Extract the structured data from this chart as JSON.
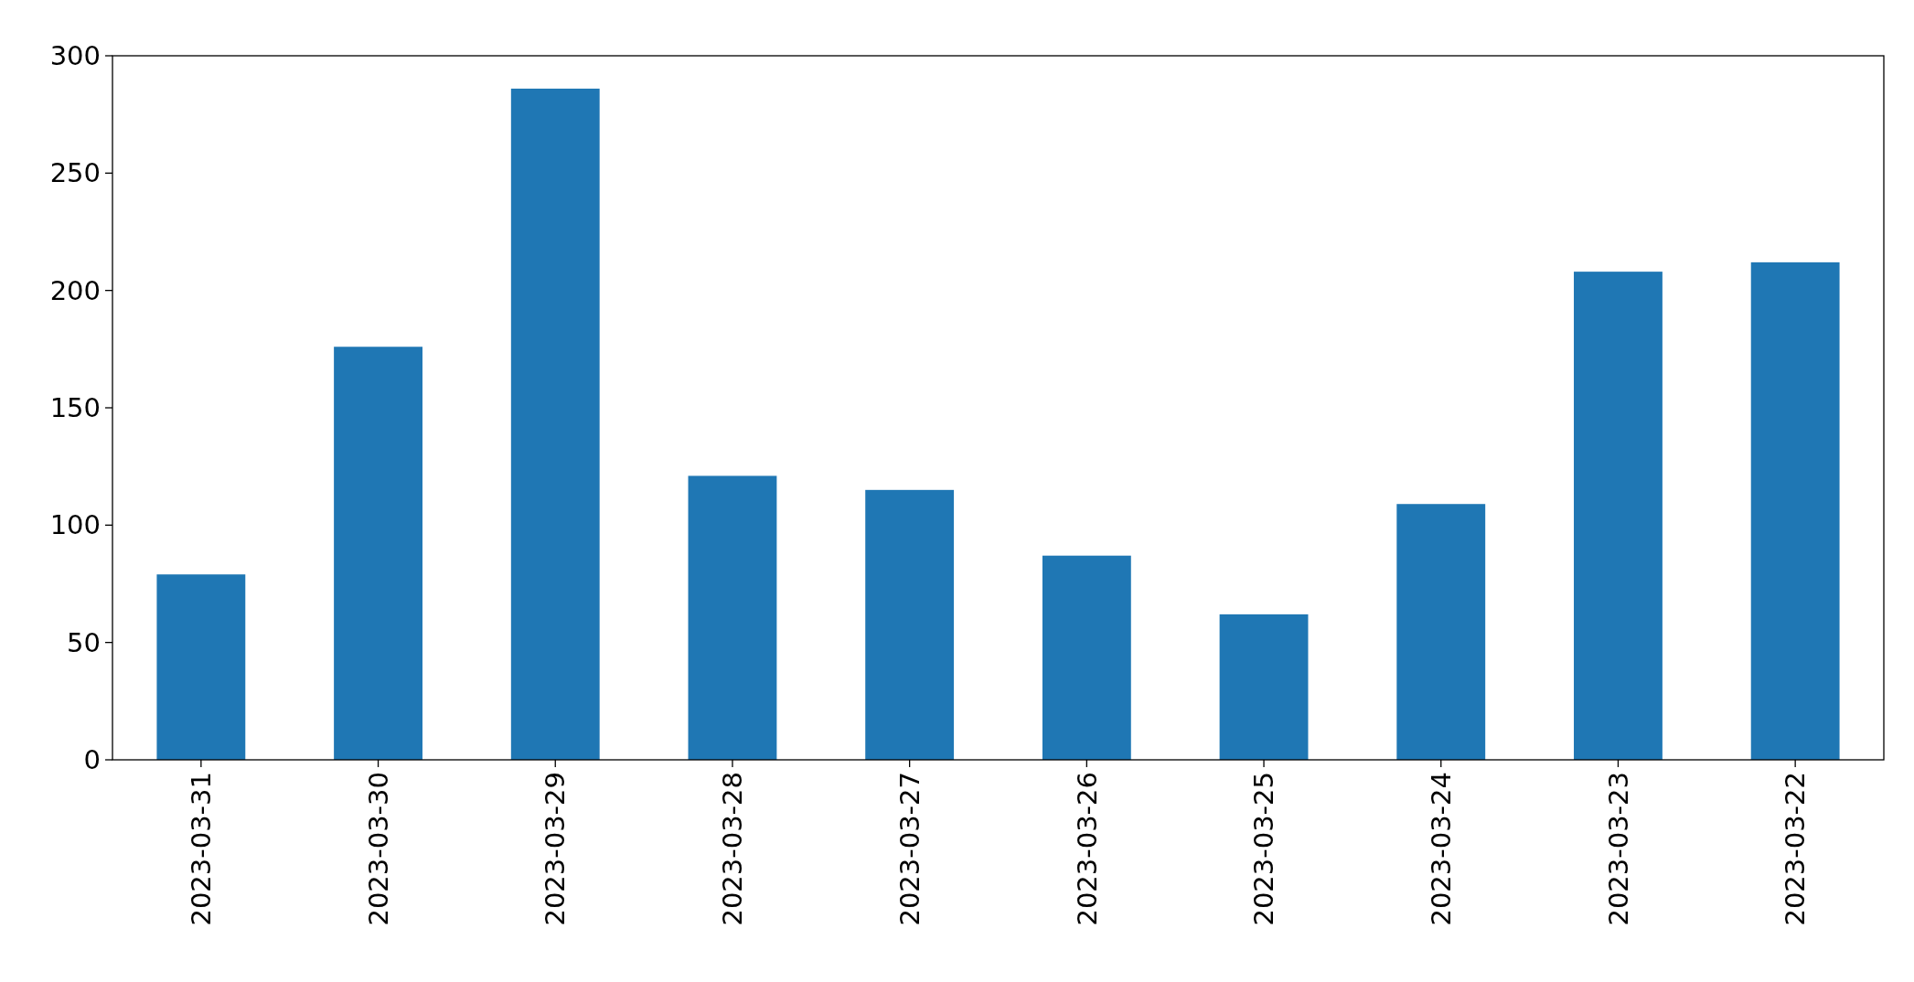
{
  "chart_data": {
    "type": "bar",
    "categories": [
      "2023-03-31",
      "2023-03-30",
      "2023-03-29",
      "2023-03-28",
      "2023-03-27",
      "2023-03-26",
      "2023-03-25",
      "2023-03-24",
      "2023-03-23",
      "2023-03-22"
    ],
    "values": [
      79,
      176,
      286,
      121,
      115,
      87,
      62,
      109,
      208,
      212
    ],
    "color": "#1f77b4",
    "ylim": [
      0,
      300
    ],
    "yticks": [
      0,
      50,
      100,
      150,
      200,
      250,
      300
    ],
    "grid": false
  }
}
